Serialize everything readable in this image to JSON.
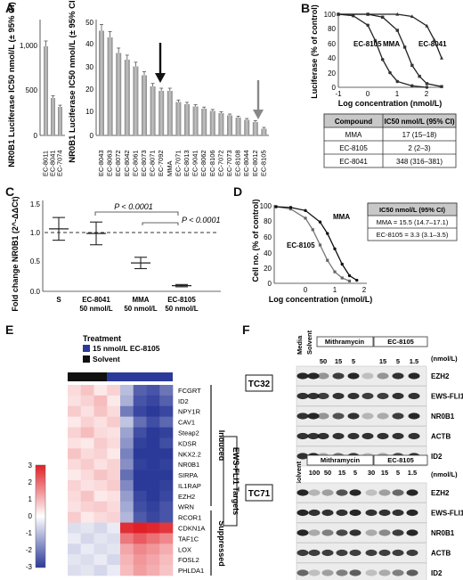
{
  "panel_labels": [
    "A",
    "B",
    "C",
    "D",
    "E",
    "F"
  ],
  "panelA": {
    "left_ylabel": "NR0B1 Luciferase IC50 nmol/L (± 95% CI)",
    "right_ylabel": "NR0B1 Luciferase IC50 nmol/L (± 95% CI)",
    "left_ticks": [
      "1,000",
      "500",
      "0"
    ],
    "right_ticks": [
      "50",
      "40",
      "30",
      "20",
      "10",
      "0"
    ]
  },
  "panelB": {
    "ylabel": "Luciferase (% of control)",
    "xlabel": "Log concentration (nmol/L)",
    "yticks": [
      "100",
      "80",
      "60",
      "40",
      "20",
      "0"
    ],
    "xticks": [
      "-1",
      "0",
      "1",
      "2"
    ],
    "curve_labels": [
      "EC-8105",
      "MMA",
      "EC-8041"
    ],
    "table": {
      "headers": [
        "Compound",
        "IC50 nmol/L (95% CI)"
      ],
      "rows": [
        [
          "MMA",
          "17 (15–18)"
        ],
        [
          "EC-8105",
          "2 (2–3)"
        ],
        [
          "EC-8041",
          "348 (316–381)"
        ]
      ]
    }
  },
  "panelC": {
    "ylabel": "Fold change NR0B1 (2^-ΔΔCt)",
    "yticks": [
      "1.5",
      "1.0",
      "0.5",
      "0.0"
    ],
    "pvalue_label": "P < 0.0001",
    "categories": [
      {
        "l1": "S",
        "l2": ""
      },
      {
        "l1": "EC-8041",
        "l2": "50 nmol/L"
      },
      {
        "l1": "MMA",
        "l2": "50 nmol/L"
      },
      {
        "l1": "EC-8105",
        "l2": "50 nmol/L"
      }
    ]
  },
  "panelD": {
    "ylabel": "Cell no. (% of control)",
    "xlabel": "Log concentration (nmol/L)",
    "yticks": [
      "100",
      "80",
      "60",
      "40",
      "20",
      "0"
    ],
    "xticks": [
      "0",
      "1",
      "2"
    ],
    "curve_labels": [
      "MMA",
      "EC-8105"
    ],
    "box_header": "IC50 nmol/L  (95% CI)",
    "box_rows": [
      "MMA = 15.5 (14.7–17.1)",
      "EC-8105 = 3.3 (3.1–3.5)"
    ]
  },
  "panelE": {
    "treatment_title": "Treatment",
    "legend": [
      "15 nmol/L EC-8105",
      "Solvent"
    ],
    "scale_ticks": [
      "3",
      "2",
      "1",
      "0",
      "-1",
      "-2",
      "-3"
    ],
    "genes": [
      "FCGRT",
      "ID2",
      "NPY1R",
      "CAV1",
      "Steap2",
      "KDSR",
      "NKX2.2",
      "NR0B1",
      "SIRPA",
      "IL1RAP",
      "EZH2",
      "WRN",
      "RCOR1",
      "CDKN1A",
      "TAF1C",
      "LOX",
      "FOSL2",
      "PHLDA1"
    ],
    "group_induced": "Induced",
    "group_suppressed": "Suppressed",
    "targets_label": "EWS-FLI1 Targets"
  },
  "panelF": {
    "tc32": {
      "cell_line": "TC32",
      "col1": "Media",
      "col2": "Solvent",
      "group1": "Mithramycin",
      "group2": "EC-8105",
      "doses1": [
        "50",
        "15",
        "5"
      ],
      "doses2": [
        "15",
        "5",
        "1.5"
      ],
      "unit": "(nmol/L)",
      "blots": [
        "EZH2",
        "EWS-FLI1",
        "NR0B1",
        "ACTB",
        "ID2"
      ]
    },
    "tc71": {
      "cell_line": "TC71",
      "col1": "Solvent",
      "group1": "Mithramycin",
      "group2": "EC-8105",
      "doses1": [
        "100",
        "50",
        "15",
        "5"
      ],
      "doses2": [
        "30",
        "15",
        "5",
        "1.5"
      ],
      "unit": "(nmol/L)",
      "blots": [
        "EZH2",
        "EWS-FLI1",
        "NR0B1",
        "ACTB",
        "ID2"
      ]
    }
  },
  "chart_data": [
    {
      "type": "bar",
      "title": "",
      "ylabel": "NR0B1 Luciferase IC50 nmol/L (± 95% CI)",
      "categories": [
        "EC-8011",
        "EC-8041",
        "EC-7074"
      ],
      "values": [
        1000,
        420,
        320
      ],
      "ylim": [
        0,
        1100
      ]
    },
    {
      "type": "bar",
      "title": "",
      "ylabel": "NR0B1 Luciferase IC50 nmol/L (± 95% CI)",
      "categories": [
        "EC-8043",
        "EC-8063",
        "EC-8072",
        "EC-8042",
        "EC-8061",
        "EC-8073",
        "EC-8071",
        "EC-7092",
        "MMA",
        "EC-7071",
        "EC-8013",
        "EC-9041",
        "EC-8062",
        "EC-8106",
        "EC-7072",
        "EC-7073",
        "EC-8108",
        "EC-8044",
        "EC-8012",
        "EC-8105"
      ],
      "values": [
        47,
        44,
        37,
        34,
        31,
        27,
        22,
        20,
        20,
        15,
        14,
        13,
        12,
        11,
        10,
        9,
        8,
        7,
        6,
        3
      ],
      "ylim": [
        0,
        50
      ]
    },
    {
      "type": "line",
      "title": "",
      "xlabel": "Log concentration (nmol/L)",
      "ylabel": "Luciferase (% of control)",
      "xlim": [
        -1,
        2.5
      ],
      "ylim": [
        0,
        100
      ],
      "series": [
        {
          "name": "EC-8105",
          "x": [
            -1,
            -0.5,
            0,
            0.25,
            0.5,
            0.75,
            1,
            1.5,
            2
          ],
          "y": [
            100,
            98,
            85,
            64,
            38,
            20,
            8,
            2,
            0
          ]
        },
        {
          "name": "MMA",
          "x": [
            -1,
            0,
            0.5,
            1,
            1.25,
            1.5,
            1.75,
            2,
            2.5
          ],
          "y": [
            100,
            100,
            96,
            78,
            55,
            30,
            15,
            5,
            1
          ]
        },
        {
          "name": "EC-8041",
          "x": [
            -1,
            0,
            1,
            1.5,
            2,
            2.25,
            2.5
          ],
          "y": [
            100,
            100,
            100,
            97,
            84,
            65,
            40
          ]
        }
      ]
    },
    {
      "type": "scatter",
      "title": "",
      "ylabel": "Fold change NR0B1 (2^-ΔΔCt)",
      "ylim": [
        0,
        1.6
      ],
      "categories": [
        "S",
        "EC-8041 50 nmol/L",
        "MMA 50 nmol/L",
        "EC-8105 50 nmol/L"
      ],
      "series": [
        {
          "name": "mean",
          "values": [
            1.1,
            1.02,
            0.5,
            0.1
          ]
        },
        {
          "name": "upper",
          "values": [
            1.3,
            1.22,
            0.6,
            0.12
          ]
        },
        {
          "name": "lower",
          "values": [
            0.9,
            0.82,
            0.4,
            0.08
          ]
        }
      ],
      "reference_line": 1.0
    },
    {
      "type": "line",
      "title": "",
      "xlabel": "Log concentration (nmol/L)",
      "ylabel": "Cell no. (% of control)",
      "xlim": [
        -1,
        2
      ],
      "ylim": [
        0,
        100
      ],
      "series": [
        {
          "name": "EC-8105",
          "x": [
            -1,
            -0.5,
            0,
            0.25,
            0.5,
            0.75,
            1,
            1.25,
            1.5
          ],
          "y": [
            100,
            97,
            85,
            70,
            50,
            30,
            15,
            7,
            3
          ]
        },
        {
          "name": "MMA",
          "x": [
            -1,
            -0.5,
            0,
            0.5,
            0.75,
            1,
            1.25,
            1.5,
            1.75
          ],
          "y": [
            100,
            99,
            95,
            80,
            65,
            45,
            25,
            10,
            4
          ]
        }
      ]
    },
    {
      "type": "heatmap",
      "title": "",
      "rows": [
        "FCGRT",
        "ID2",
        "NPY1R",
        "CAV1",
        "Steap2",
        "KDSR",
        "NKX2.2",
        "NR0B1",
        "SIRPA",
        "IL1RAP",
        "EZH2",
        "WRN",
        "RCOR1",
        "CDKN1A",
        "TAF1C",
        "LOX",
        "FOSL2",
        "PHLDA1"
      ],
      "columns": [
        "Solvent",
        "Solvent",
        "Solvent",
        "Solvent",
        "15 nmol/L EC-8105",
        "15 nmol/L EC-8105",
        "15 nmol/L EC-8105",
        "15 nmol/L EC-8105"
      ],
      "color_scale": [
        -3,
        3
      ],
      "colors": {
        "low": "#2b3a99",
        "mid": "#ffffff",
        "high": "#e02027"
      },
      "values": [
        [
          0.5,
          0.8,
          0.3,
          0.6,
          -1.0,
          -2.4,
          -2.6,
          -2.1
        ],
        [
          0.4,
          0.6,
          0.9,
          0.3,
          -1.2,
          -2.6,
          -2.8,
          -2.4
        ],
        [
          0.7,
          0.4,
          0.8,
          0.5,
          -2.0,
          -2.8,
          -3.0,
          -2.8
        ],
        [
          0.3,
          0.6,
          0.4,
          0.7,
          -0.9,
          -2.2,
          -2.7,
          -2.3
        ],
        [
          0.6,
          0.9,
          0.5,
          0.4,
          -1.4,
          -2.7,
          -3.0,
          -2.9
        ],
        [
          0.4,
          0.3,
          0.7,
          0.5,
          -1.6,
          -2.9,
          -3.0,
          -2.7
        ],
        [
          0.8,
          0.5,
          0.6,
          0.3,
          -1.9,
          -3.0,
          -3.0,
          -3.0
        ],
        [
          0.5,
          0.7,
          0.4,
          0.6,
          -1.7,
          -2.9,
          -3.0,
          -2.9
        ],
        [
          0.3,
          0.5,
          0.8,
          0.6,
          -2.2,
          -3.0,
          -3.0,
          -3.0
        ],
        [
          0.6,
          0.4,
          0.5,
          0.7,
          -1.8,
          -3.0,
          -3.0,
          -2.9
        ],
        [
          0.5,
          0.8,
          0.3,
          0.4,
          -1.5,
          -2.8,
          -3.0,
          -2.8
        ],
        [
          0.4,
          0.6,
          0.7,
          0.5,
          -1.3,
          -2.7,
          -2.9,
          -2.6
        ],
        [
          0.7,
          0.3,
          0.5,
          0.6,
          -1.1,
          -2.5,
          -2.8,
          -2.6
        ],
        [
          -0.5,
          -0.4,
          -0.6,
          -0.3,
          2.8,
          3.0,
          2.9,
          2.7
        ],
        [
          -0.3,
          -0.6,
          -0.4,
          -0.5,
          1.8,
          2.2,
          1.9,
          1.6
        ],
        [
          -0.6,
          -0.3,
          -0.5,
          -0.4,
          1.2,
          1.6,
          1.4,
          1.1
        ],
        [
          -0.4,
          -0.5,
          -0.3,
          -0.6,
          1.0,
          1.4,
          1.2,
          0.9
        ],
        [
          -0.5,
          -0.4,
          -0.6,
          -0.3,
          0.9,
          1.3,
          1.1,
          0.8
        ]
      ]
    }
  ]
}
